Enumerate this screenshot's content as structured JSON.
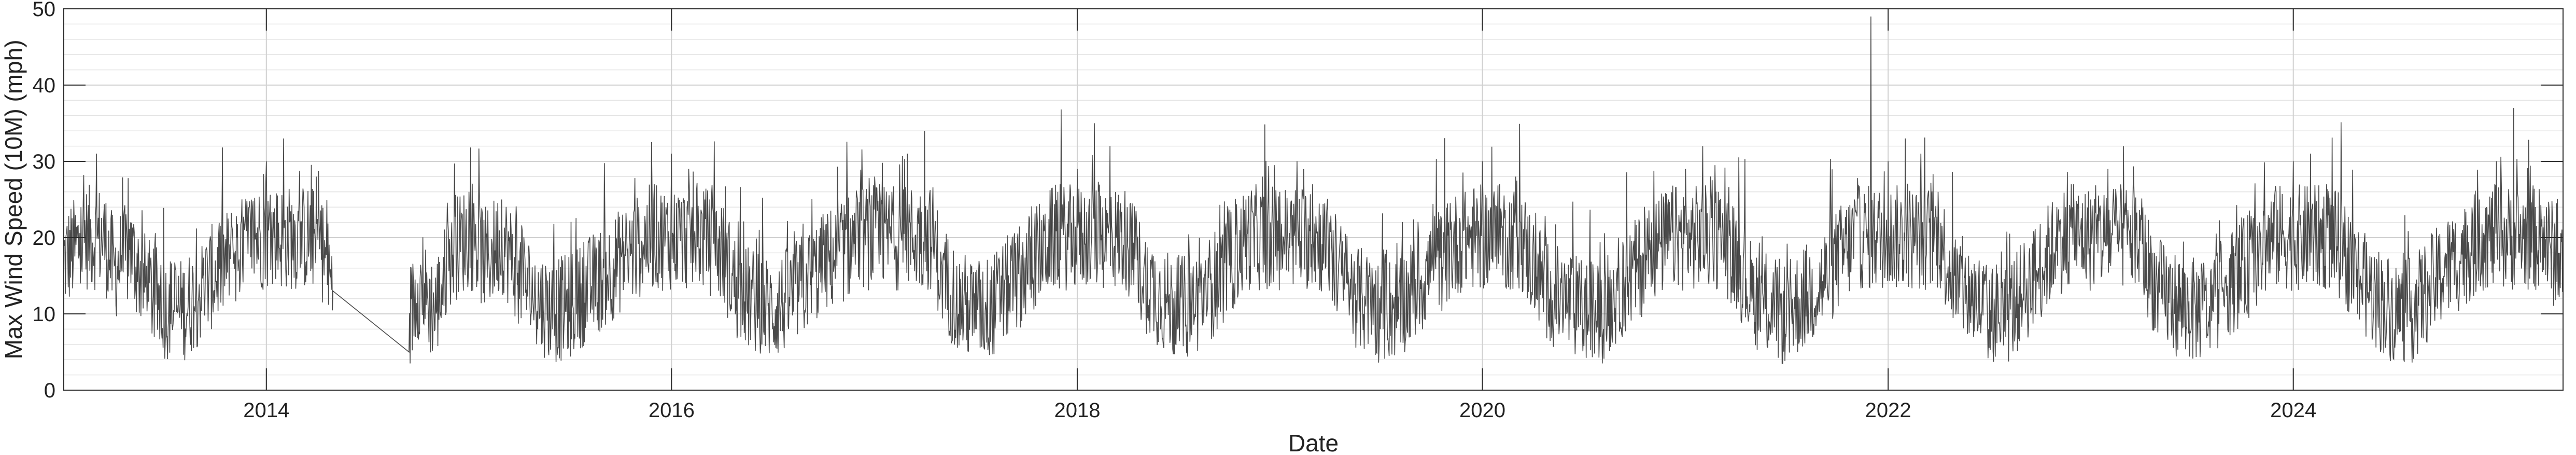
{
  "chart_data": {
    "type": "line",
    "title": "",
    "xlabel": "Date",
    "ylabel": "Max Wind Speed (10M) (mph)",
    "x_range": [
      "2013-01-01",
      "2025-05-01"
    ],
    "ylim": [
      0,
      50
    ],
    "x_ticks": [
      "2014",
      "2016",
      "2018",
      "2020",
      "2022",
      "2024"
    ],
    "y_ticks": [
      0,
      10,
      20,
      30,
      40,
      50
    ],
    "grid": true,
    "minor_grid": true,
    "legend": "none",
    "line_color": "#4a4a4a",
    "series": [
      {
        "name": "",
        "note_points_are_monthly_samples_of_daily_series": true,
        "x": [
          "2013-01-01",
          "2013-02-01",
          "2013-03-01",
          "2013-04-01",
          "2013-05-01",
          "2013-06-01",
          "2013-07-01",
          "2013-08-01",
          "2013-09-01",
          "2013-10-01",
          "2013-11-01",
          "2013-12-01",
          "2014-01-01",
          "2014-02-01",
          "2014-03-01",
          "2014-04-01",
          "2014-05-01",
          "2014-09-15",
          "2014-10-01",
          "2014-11-01",
          "2014-12-01",
          "2015-01-01",
          "2015-02-01",
          "2015-03-01",
          "2015-04-01",
          "2015-05-01",
          "2015-06-01",
          "2015-07-01",
          "2015-08-01",
          "2015-09-01",
          "2015-10-01",
          "2015-11-01",
          "2015-12-01",
          "2016-01-01",
          "2016-02-01",
          "2016-03-01",
          "2016-04-01",
          "2016-05-01",
          "2016-06-01",
          "2016-07-01",
          "2016-08-01",
          "2016-09-01",
          "2016-10-01",
          "2016-11-01",
          "2016-12-01",
          "2017-01-01",
          "2017-02-01",
          "2017-03-01",
          "2017-04-01",
          "2017-05-01",
          "2017-06-01",
          "2017-07-01",
          "2017-08-01",
          "2017-09-01",
          "2017-10-01",
          "2017-11-01",
          "2017-12-01",
          "2018-01-01",
          "2018-02-01",
          "2018-03-01",
          "2018-04-01",
          "2018-05-01",
          "2018-06-01",
          "2018-07-01",
          "2018-08-01",
          "2018-09-01",
          "2018-10-01",
          "2018-11-01",
          "2018-12-01",
          "2019-01-01",
          "2019-02-01",
          "2019-03-01",
          "2019-04-01",
          "2019-05-01",
          "2019-06-01",
          "2019-07-01",
          "2019-08-01",
          "2019-09-01",
          "2019-10-01",
          "2019-11-01",
          "2019-12-01",
          "2020-01-01",
          "2020-02-01",
          "2020-03-01",
          "2020-04-01",
          "2020-05-01",
          "2020-06-01",
          "2020-07-01",
          "2020-08-01",
          "2020-09-01",
          "2020-10-01",
          "2020-11-01",
          "2020-12-01",
          "2021-01-01",
          "2021-02-01",
          "2021-03-01",
          "2021-04-01",
          "2021-05-01",
          "2021-06-01",
          "2021-07-01",
          "2021-08-01",
          "2021-09-01",
          "2021-10-01",
          "2021-11-01",
          "2021-12-01",
          "2022-01-01",
          "2022-02-01",
          "2022-03-01",
          "2022-04-01",
          "2022-05-01",
          "2022-06-01",
          "2022-07-01",
          "2022-08-01",
          "2022-09-01",
          "2022-10-01",
          "2022-11-01",
          "2022-12-01",
          "2023-01-01",
          "2023-02-01",
          "2023-03-01",
          "2023-04-01",
          "2023-05-01",
          "2023-06-01",
          "2023-07-01",
          "2023-08-01",
          "2023-09-01",
          "2023-10-01",
          "2023-11-01",
          "2023-12-01",
          "2024-01-01",
          "2024-02-01",
          "2024-03-01",
          "2024-04-01",
          "2024-05-01",
          "2024-06-01",
          "2024-07-01",
          "2024-08-01",
          "2024-09-01",
          "2024-10-01",
          "2024-11-01",
          "2024-12-01",
          "2025-01-01",
          "2025-02-01",
          "2025-03-01",
          "2025-04-01",
          "2025-05-01"
        ],
        "values": [
          20,
          24,
          31,
          18,
          22,
          13,
          9,
          8,
          12,
          17,
          21,
          24,
          30,
          33,
          25,
          28,
          13,
          5,
          14,
          8,
          22,
          26,
          20,
          25,
          17,
          11,
          8,
          9,
          13,
          16,
          20,
          23,
          27,
          31,
          29,
          25,
          22,
          12,
          10,
          8,
          11,
          15,
          19,
          22,
          25,
          28,
          26,
          31,
          34,
          17,
          10,
          8,
          9,
          14,
          18,
          23,
          27,
          29,
          35,
          32,
          24,
          16,
          11,
          8,
          10,
          14,
          19,
          25,
          28,
          26,
          30,
          27,
          22,
          14,
          10,
          8,
          9,
          13,
          18,
          22,
          26,
          30,
          27,
          28,
          19,
          12,
          10,
          8,
          7,
          13,
          17,
          22,
          25,
          29,
          32,
          26,
          21,
          12,
          9,
          7,
          11,
          14,
          20,
          25,
          49,
          30,
          33,
          31,
          26,
          15,
          11,
          8,
          7,
          12,
          18,
          24,
          27,
          25,
          29,
          32,
          23,
          13,
          10,
          8,
          9,
          14,
          17,
          22,
          26,
          30,
          31,
          27,
          22,
          15,
          11,
          8,
          8,
          13,
          18,
          21,
          25,
          30,
          37,
          26,
          24,
          18
        ]
      }
    ]
  }
}
